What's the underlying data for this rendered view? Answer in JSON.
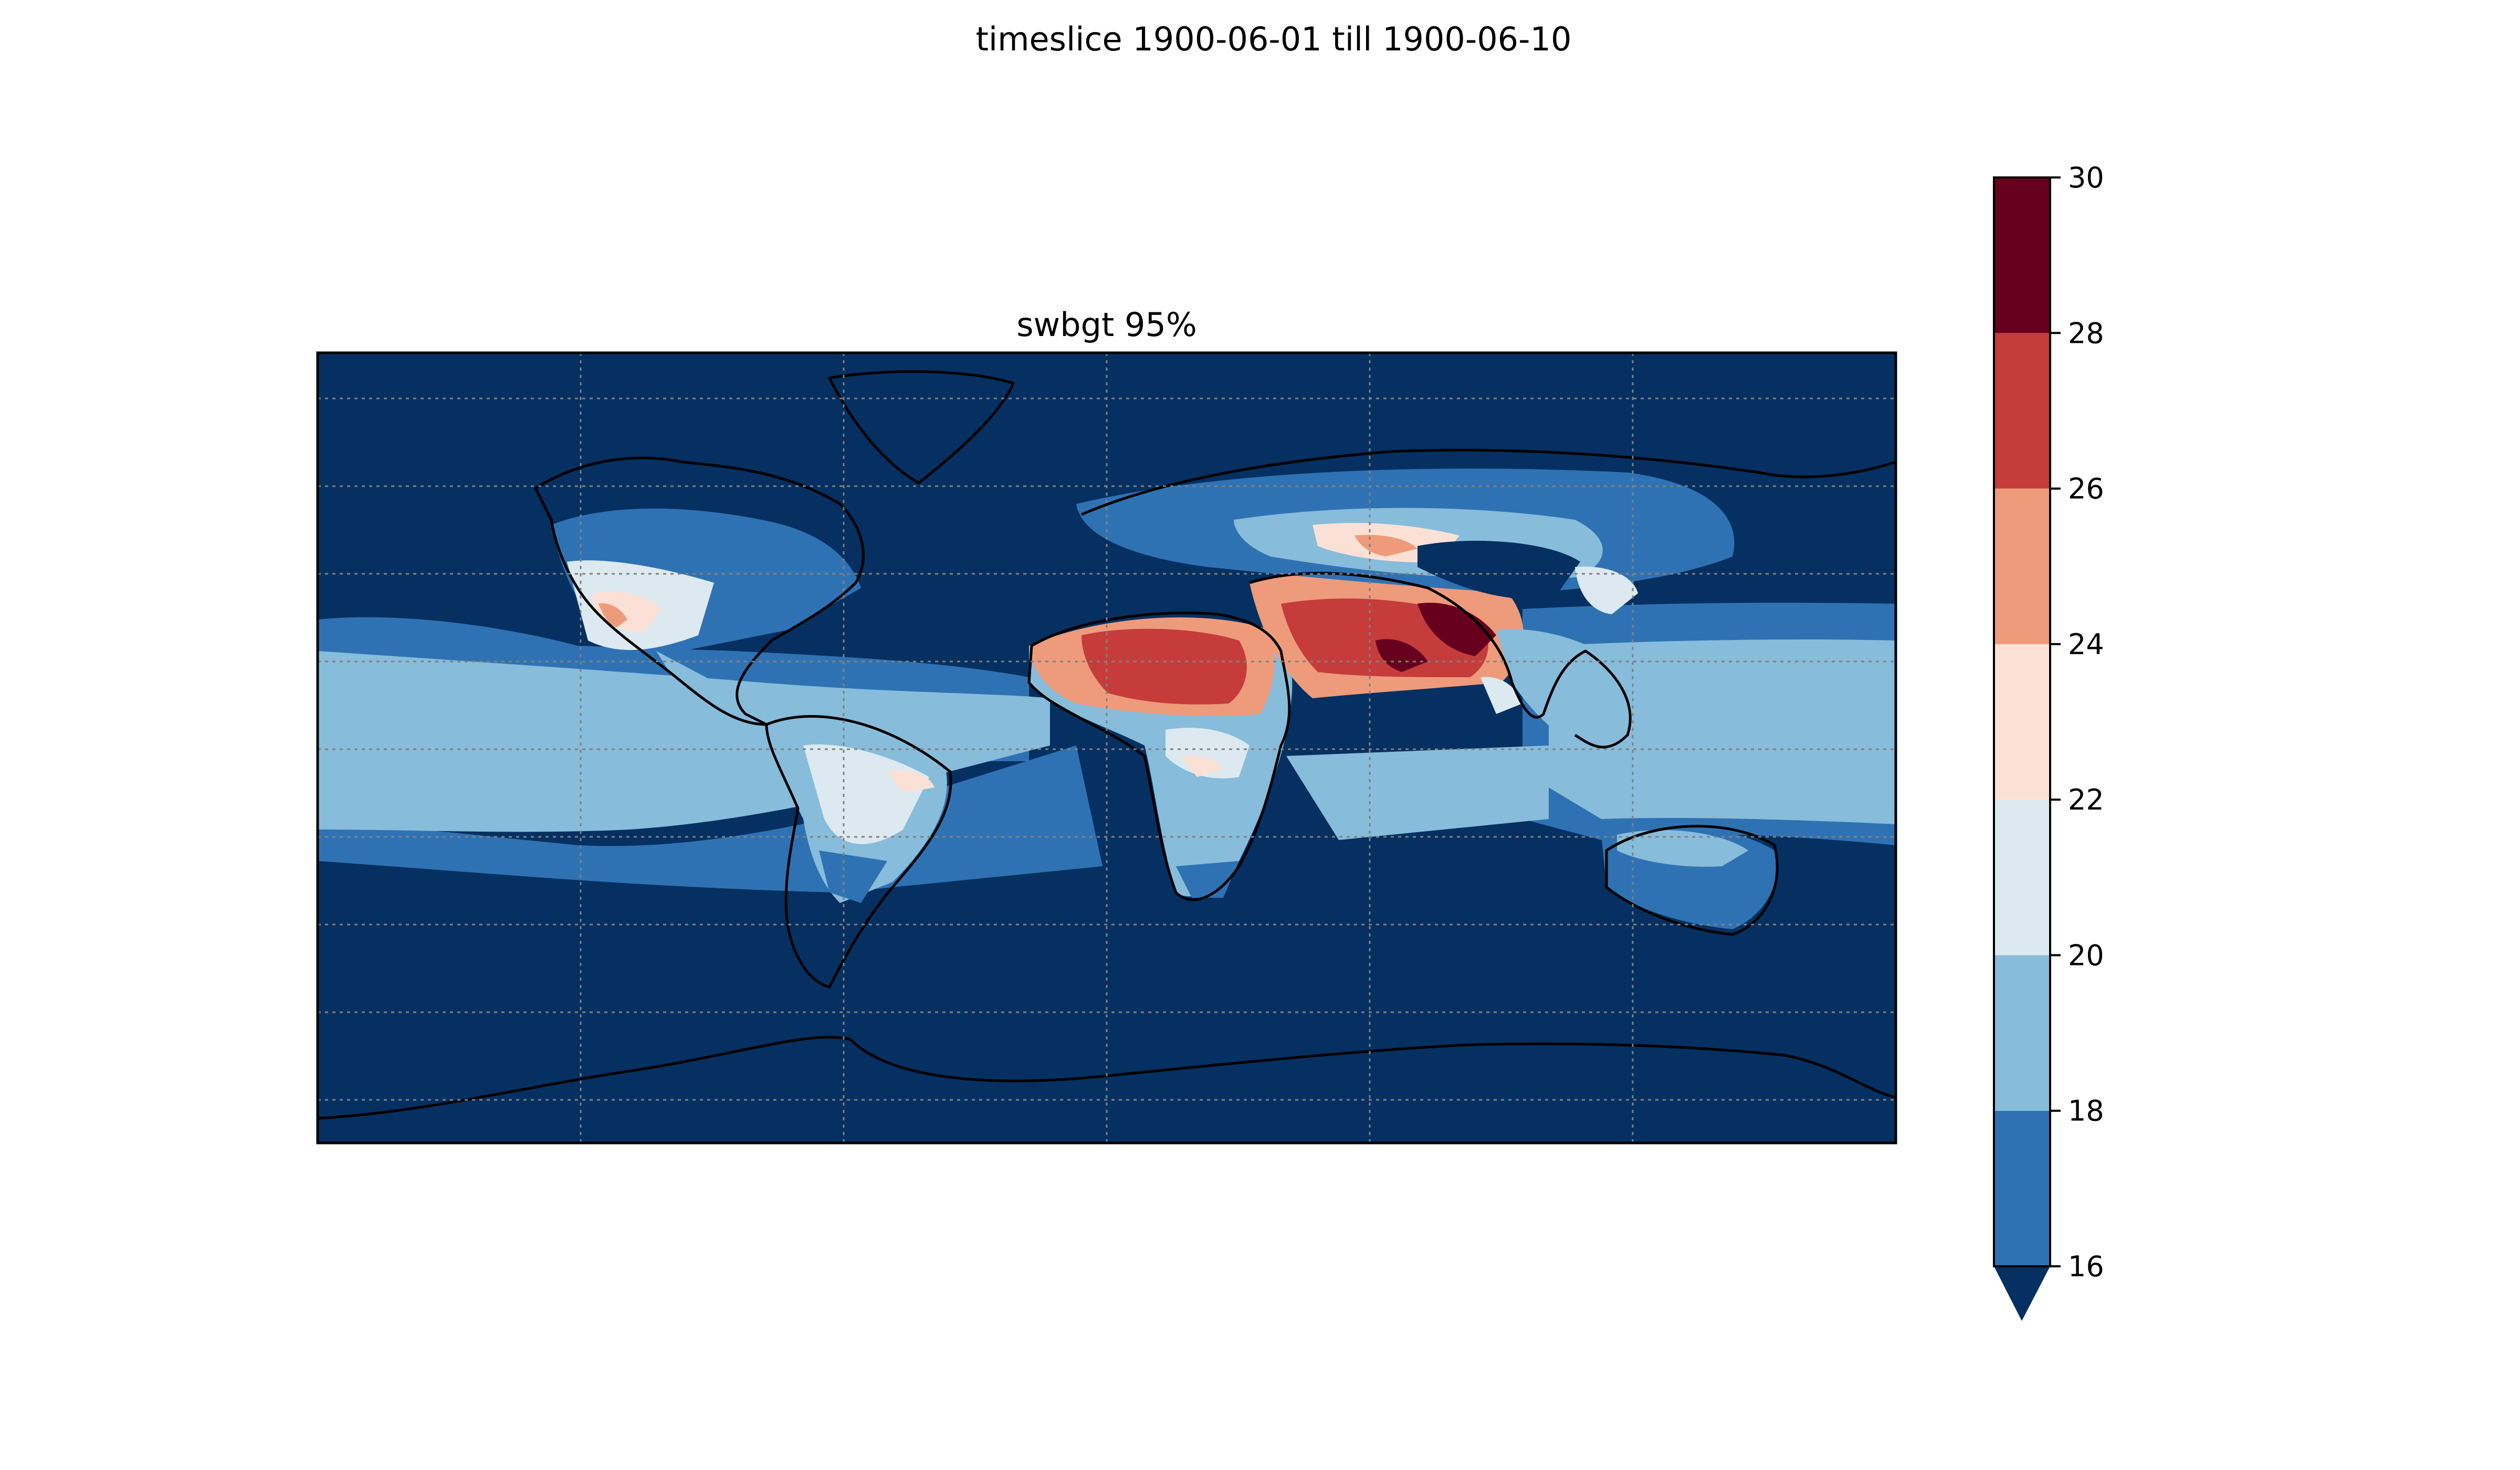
{
  "figure": {
    "title": "timeslice 1900-06-01 till 1900-06-10"
  },
  "map": {
    "title": "swbgt 95%",
    "projection": "plate-carree",
    "extent": {
      "lon": [
        -180,
        180
      ],
      "lat": [
        -90,
        90
      ]
    },
    "gridlines": {
      "enabled": true,
      "style": "dotted",
      "color": "#808080",
      "lon": [
        -120,
        -60,
        0,
        60,
        120
      ],
      "lat": [
        -80,
        -60,
        -40,
        -20,
        0,
        20,
        40,
        60,
        80
      ]
    },
    "coastlines": true
  },
  "colorbar": {
    "levels": [
      16,
      18,
      20,
      22,
      24,
      26,
      28,
      30
    ],
    "colors": [
      "#2f72b3",
      "#87bcdb",
      "#dce9f1",
      "#fbe1d5",
      "#ee9b7b",
      "#c53c3b",
      "#67001f"
    ],
    "under_color": "#053061",
    "extend": "min",
    "tick_labels": [
      "30",
      "28",
      "26",
      "24",
      "22",
      "20",
      "18",
      "16"
    ]
  },
  "palette": {
    "ocean_cold": "#053061",
    "band_18": "#2f72b3",
    "band_20": "#87bcdb",
    "band_22": "#dce9f1",
    "band_24": "#fbe1d5",
    "band_26": "#ee9b7b",
    "band_28": "#c53c3b",
    "band_30": "#67001f"
  }
}
